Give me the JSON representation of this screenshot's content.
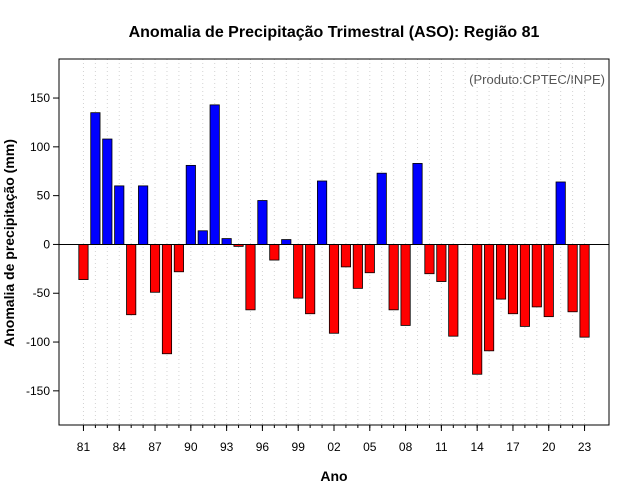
{
  "chart_data": {
    "type": "bar",
    "title": "Anomalia de Precipitação Trimestral (ASO): Região 81",
    "xlabel": "Ano",
    "ylabel": "Anomalia de precipitação (mm)",
    "credit": "(Produto:CPTEC/INPE)",
    "ylim": [
      -185,
      190
    ],
    "yticks": [
      -150,
      -100,
      -50,
      0,
      50,
      100,
      150
    ],
    "xtick_labels": [
      "81",
      "84",
      "87",
      "90",
      "93",
      "96",
      "99",
      "02",
      "05",
      "08",
      "11",
      "14",
      "17",
      "20",
      "23"
    ],
    "categories": [
      "1981",
      "1982",
      "1983",
      "1984",
      "1985",
      "1986",
      "1987",
      "1988",
      "1989",
      "1990",
      "1991",
      "1992",
      "1993",
      "1994",
      "1995",
      "1996",
      "1997",
      "1998",
      "1999",
      "2000",
      "2001",
      "2002",
      "2003",
      "2004",
      "2005",
      "2006",
      "2007",
      "2008",
      "2009",
      "2010",
      "2011",
      "2012",
      "2013",
      "2014",
      "2015",
      "2016",
      "2017",
      "2018",
      "2019",
      "2020",
      "2021",
      "2022",
      "2023"
    ],
    "values": [
      -36,
      135,
      108,
      60,
      -72,
      60,
      -49,
      -112,
      -28,
      81,
      14,
      143,
      6,
      -2,
      -67,
      45,
      -16,
      5,
      -55,
      -71,
      65,
      -91,
      -23,
      -45,
      -29,
      73,
      -67,
      -83,
      83,
      -30,
      -38,
      -94,
      0,
      -133,
      -109,
      -56,
      -71,
      -84,
      -64,
      -74,
      64,
      -69,
      -95
    ],
    "colors": {
      "positive": "#0000ff",
      "negative": "#ff0000",
      "frame": "#000000",
      "grid": "#d3d3d3"
    }
  }
}
